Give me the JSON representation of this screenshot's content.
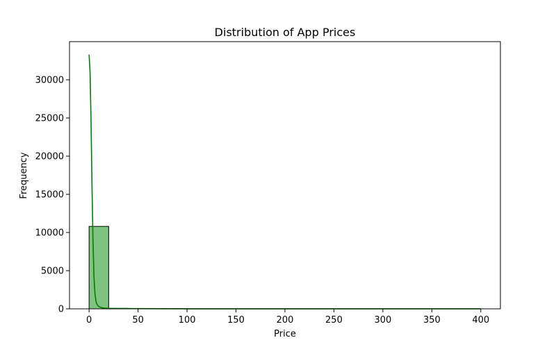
{
  "chart_data": {
    "type": "bar",
    "title": "Distribution of App Prices",
    "xlabel": "Price",
    "ylabel": "Frequency",
    "xlim": [
      -20,
      420
    ],
    "ylim": [
      0,
      35000
    ],
    "xticks": [
      0,
      50,
      100,
      150,
      200,
      250,
      300,
      350,
      400
    ],
    "yticks": [
      0,
      5000,
      10000,
      15000,
      20000,
      25000,
      30000
    ],
    "bins": {
      "edges": [
        0,
        20,
        40,
        60,
        80,
        100,
        120,
        140,
        160,
        180,
        200,
        220,
        240,
        260,
        280,
        300,
        320,
        340,
        360,
        380,
        400
      ],
      "counts": [
        10800,
        60,
        20,
        12,
        5,
        4,
        2,
        2,
        1,
        1,
        1,
        0,
        1,
        0,
        0,
        0,
        0,
        0,
        0,
        0
      ]
    },
    "kde": {
      "x": [
        0,
        1,
        2,
        3,
        4,
        5,
        6,
        7,
        8,
        9,
        10,
        12,
        14,
        16,
        20,
        30,
        50,
        100,
        200,
        300,
        400
      ],
      "y": [
        33300,
        31000,
        24500,
        16000,
        8800,
        4200,
        2000,
        1000,
        600,
        420,
        300,
        180,
        120,
        90,
        60,
        40,
        25,
        10,
        5,
        3,
        2
      ]
    },
    "colors": {
      "bar_fill": "#80c27f",
      "bar_edge": "#000000",
      "kde_line": "#008000",
      "axes": "#000000"
    },
    "grid": false,
    "legend": "none"
  }
}
